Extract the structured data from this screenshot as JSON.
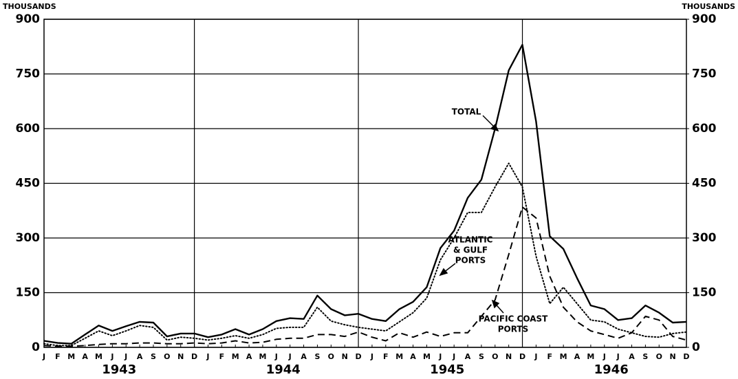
{
  "chart_data": {
    "type": "line",
    "y_axis_label": "THOUSANDS",
    "y2_axis_label": "THOUSANDS",
    "categories": [
      "J",
      "F",
      "M",
      "A",
      "M",
      "J",
      "J",
      "A",
      "S",
      "O",
      "N",
      "D",
      "J",
      "F",
      "M",
      "A",
      "M",
      "J",
      "J",
      "A",
      "S",
      "O",
      "N",
      "D",
      "J",
      "F",
      "M",
      "A",
      "M",
      "J",
      "J",
      "A",
      "S",
      "O",
      "N",
      "D",
      "J",
      "F",
      "M",
      "A",
      "M",
      "J",
      "J",
      "A",
      "S",
      "O",
      "N",
      "D"
    ],
    "years": [
      "1943",
      "1944",
      "1945",
      "1946"
    ],
    "ylim": [
      0,
      900
    ],
    "yticks": [
      0,
      150,
      300,
      450,
      600,
      750,
      900
    ],
    "y2lim": [
      0,
      900
    ],
    "y2ticks": [
      0,
      150,
      300,
      450,
      600,
      750,
      900
    ],
    "grid": true,
    "color": "#000000",
    "series": [
      {
        "name": "TOTAL",
        "dash": "solid",
        "values": [
          18,
          12,
          10,
          35,
          60,
          45,
          58,
          70,
          68,
          30,
          38,
          38,
          28,
          35,
          50,
          35,
          50,
          72,
          80,
          78,
          142,
          105,
          88,
          92,
          78,
          72,
          105,
          125,
          165,
          272,
          320,
          410,
          460,
          600,
          760,
          830,
          620,
          305,
          270,
          190,
          115,
          105,
          75,
          80,
          115,
          95,
          68,
          70
        ]
      },
      {
        "name": "ATLANTIC & GULF PORTS",
        "dash": "dotted",
        "values": [
          10,
          5,
          5,
          25,
          45,
          32,
          45,
          60,
          55,
          20,
          28,
          25,
          20,
          25,
          32,
          25,
          35,
          52,
          55,
          55,
          110,
          72,
          62,
          55,
          50,
          45,
          70,
          95,
          135,
          240,
          300,
          370,
          370,
          440,
          505,
          440,
          250,
          120,
          165,
          120,
          75,
          70,
          50,
          40,
          30,
          28,
          38,
          42
        ]
      },
      {
        "name": "PACIFIC COAST PORTS",
        "dash": "dashed",
        "values": [
          5,
          3,
          3,
          5,
          8,
          10,
          10,
          12,
          12,
          10,
          10,
          12,
          10,
          12,
          18,
          12,
          14,
          22,
          25,
          25,
          35,
          35,
          30,
          42,
          28,
          18,
          40,
          28,
          42,
          30,
          40,
          40,
          85,
          130,
          255,
          385,
          355,
          195,
          110,
          70,
          45,
          35,
          25,
          40,
          85,
          75,
          30,
          20
        ]
      }
    ],
    "annotations": [
      {
        "lines": [
          "TOTAL"
        ]
      },
      {
        "lines": [
          "ATLANTIC",
          "& GULF",
          "PORTS"
        ]
      },
      {
        "lines": [
          "PACIFIC COAST",
          "PORTS"
        ]
      }
    ]
  }
}
